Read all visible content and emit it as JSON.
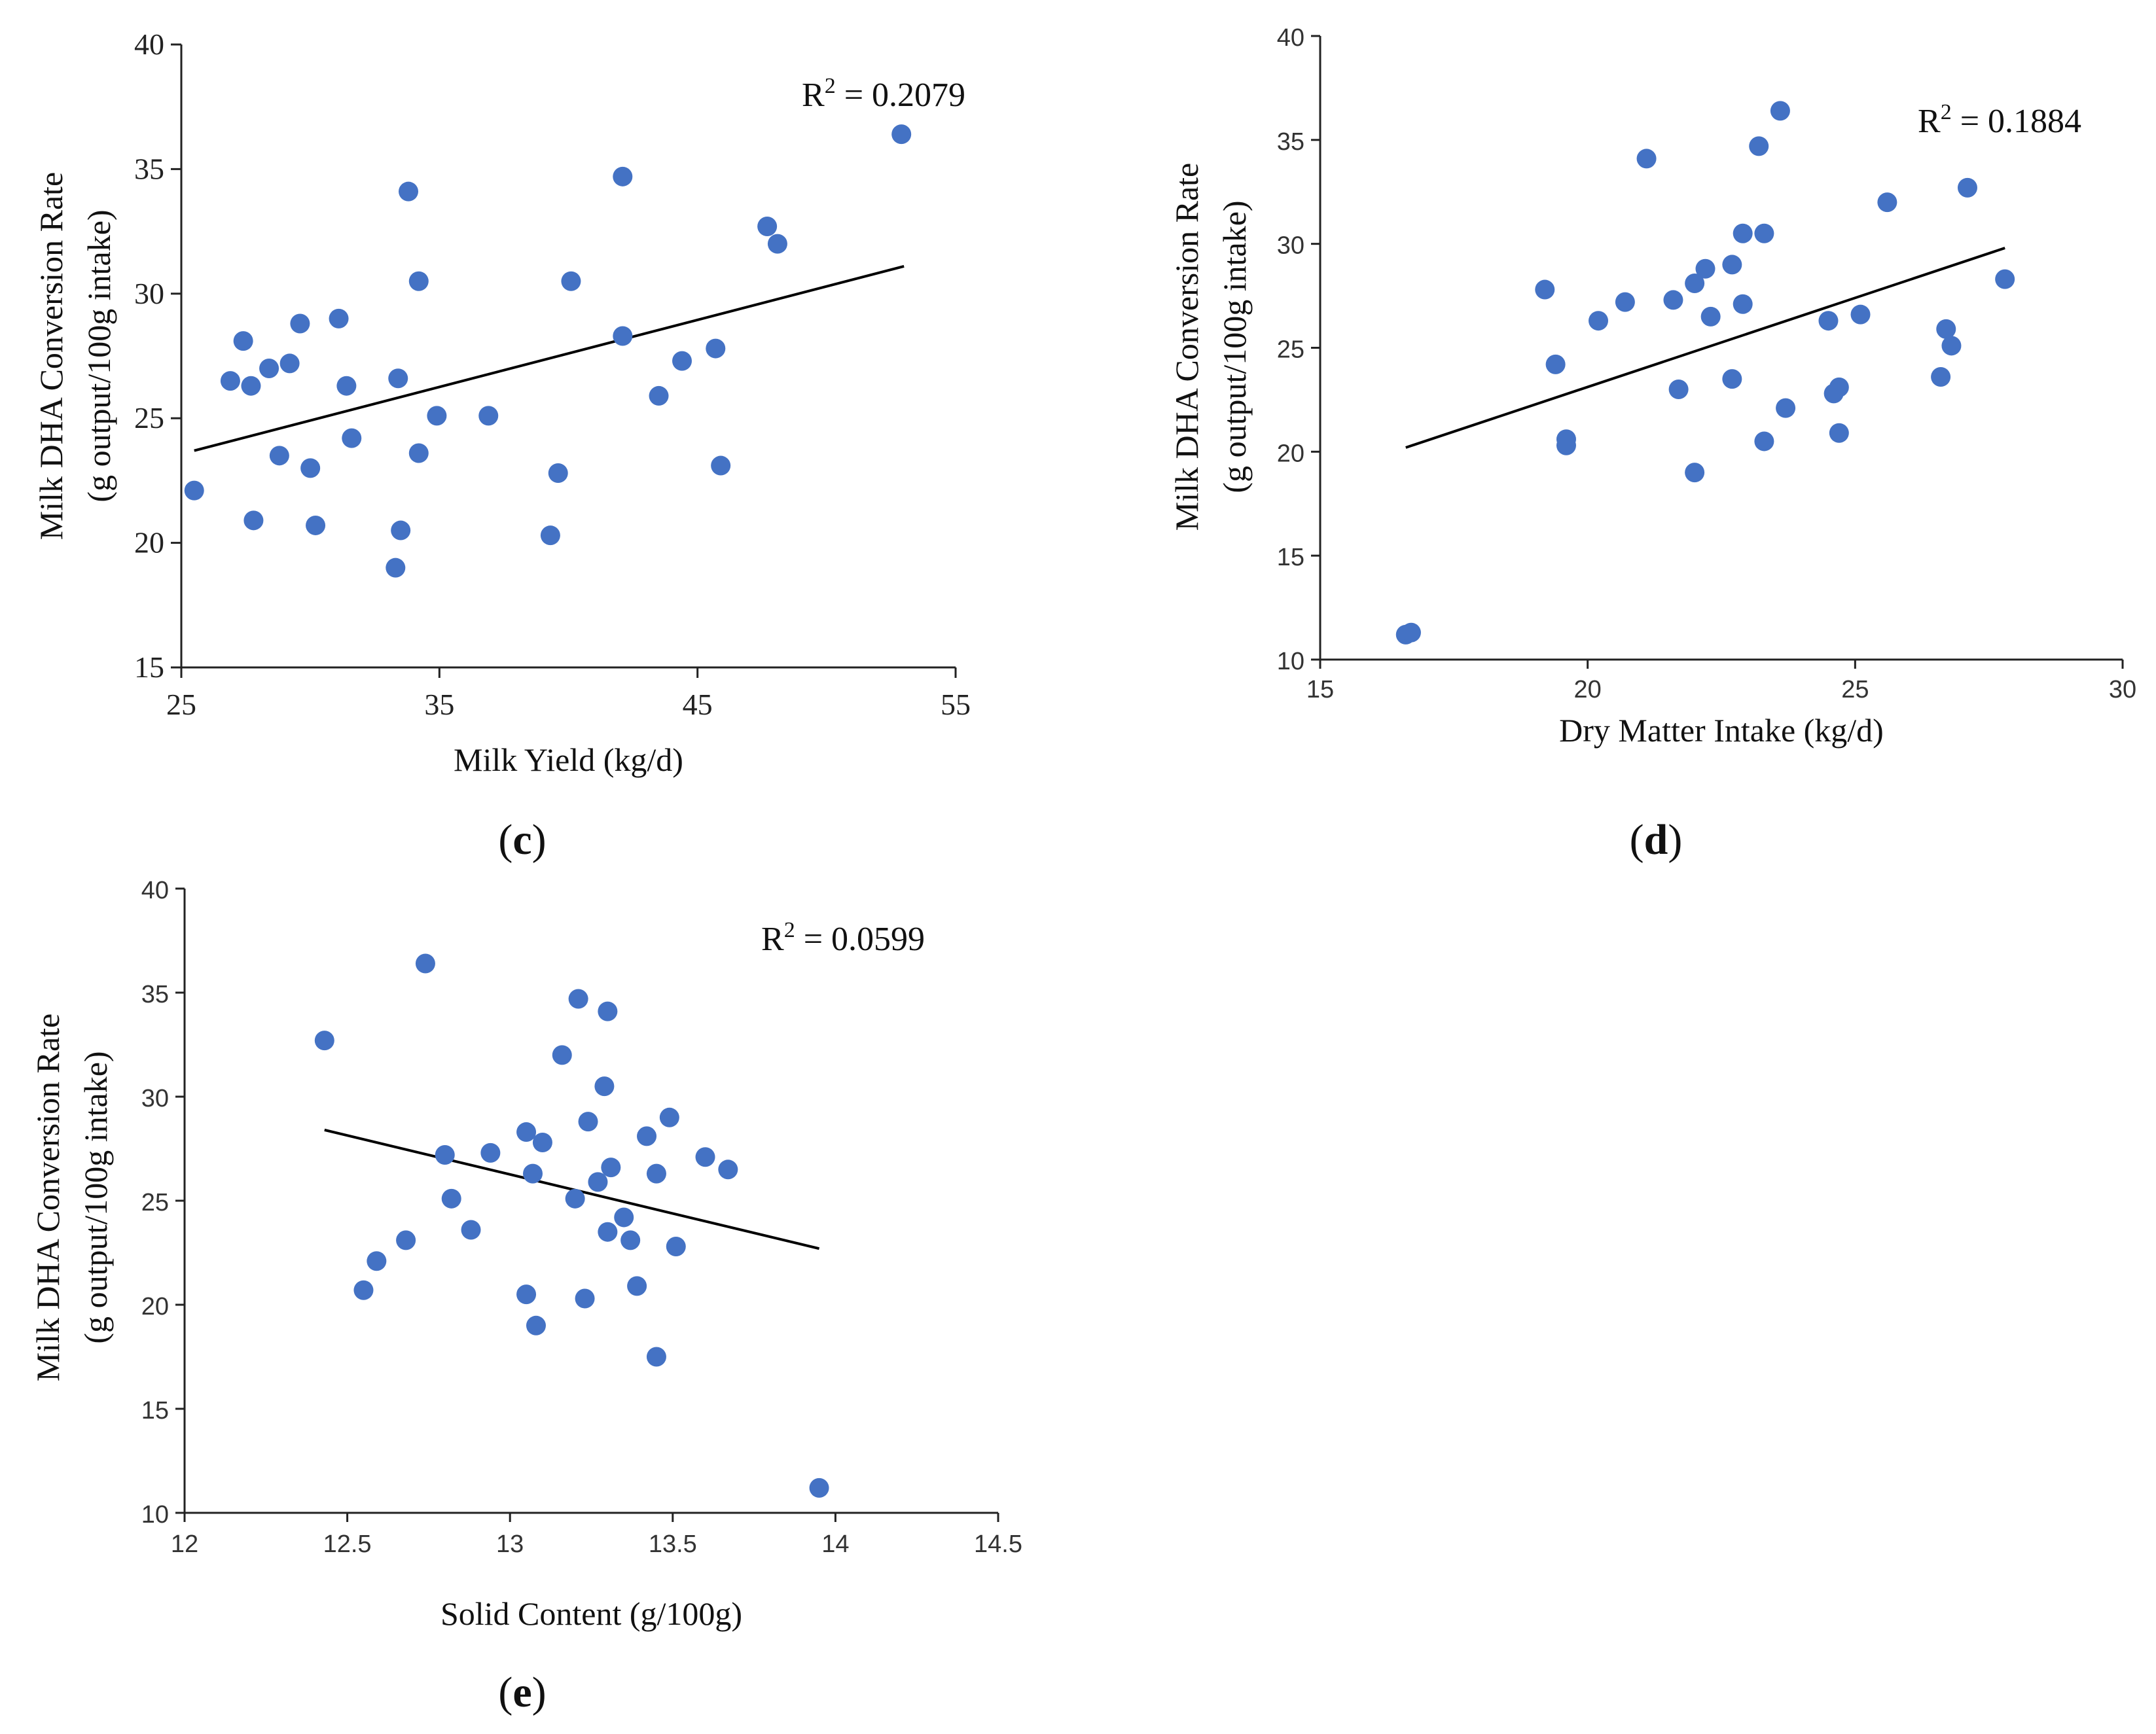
{
  "colors": {
    "point": "#4472C4",
    "line": "#000000",
    "axis": "#222222"
  },
  "chart_data": [
    {
      "type": "scatter",
      "panel": "c",
      "panel_label": "(c)",
      "xlabel": "Milk Yield (kg/d)",
      "ylabel_line1": "Milk DHA Conversion Rate",
      "ylabel_line2": "(g output/100g intake)",
      "xlim": [
        25,
        55
      ],
      "ylim": [
        15,
        40
      ],
      "xticks": [
        25,
        35,
        45,
        55
      ],
      "yticks": [
        15,
        20,
        25,
        30,
        35,
        40
      ],
      "r2_label": "R",
      "r2_sup": "2",
      "r2_value": " = 0.2079",
      "trend_line": {
        "x": [
          25.5,
          53
        ],
        "y": [
          23.7,
          31.1
        ]
      },
      "points": [
        [
          25.5,
          22.1
        ],
        [
          26.9,
          26.5
        ],
        [
          27.4,
          28.1
        ],
        [
          27.7,
          26.3
        ],
        [
          27.8,
          20.9
        ],
        [
          28.4,
          27.0
        ],
        [
          28.8,
          23.5
        ],
        [
          29.2,
          27.2
        ],
        [
          29.6,
          28.8
        ],
        [
          30.0,
          23.0
        ],
        [
          30.2,
          20.7
        ],
        [
          31.1,
          29.0
        ],
        [
          31.4,
          26.3
        ],
        [
          31.6,
          24.2
        ],
        [
          33.3,
          19.0
        ],
        [
          33.4,
          26.6
        ],
        [
          33.5,
          20.5
        ],
        [
          33.8,
          34.1
        ],
        [
          34.2,
          30.5
        ],
        [
          34.2,
          23.6
        ],
        [
          34.9,
          25.1
        ],
        [
          36.9,
          25.1
        ],
        [
          39.3,
          20.3
        ],
        [
          39.6,
          22.8
        ],
        [
          40.1,
          30.5
        ],
        [
          42.1,
          34.7
        ],
        [
          42.1,
          28.3
        ],
        [
          43.5,
          25.9
        ],
        [
          44.4,
          27.3
        ],
        [
          45.7,
          27.8
        ],
        [
          45.9,
          23.1
        ],
        [
          47.7,
          32.7
        ],
        [
          48.1,
          32.0
        ],
        [
          52.9,
          36.4
        ]
      ]
    },
    {
      "type": "scatter",
      "panel": "d",
      "panel_label": "(d)",
      "xlabel": "Dry Matter Intake (kg/d)",
      "ylabel_line1": "Milk DHA Conversion Rate",
      "ylabel_line2": "(g output/100g intake)",
      "xlim": [
        15,
        30
      ],
      "ylim": [
        10,
        40
      ],
      "xticks": [
        15,
        20,
        25,
        30
      ],
      "yticks": [
        10,
        15,
        20,
        25,
        30,
        35,
        40
      ],
      "r2_label": "R",
      "r2_sup": "2",
      "r2_value": " = 0.1884",
      "trend_line": {
        "x": [
          16.6,
          27.8
        ],
        "y": [
          20.2,
          29.8
        ]
      },
      "points": [
        [
          16.6,
          11.2
        ],
        [
          16.7,
          11.3
        ],
        [
          19.2,
          27.8
        ],
        [
          19.4,
          24.2
        ],
        [
          19.6,
          20.6
        ],
        [
          19.6,
          20.3
        ],
        [
          20.2,
          26.3
        ],
        [
          20.7,
          27.2
        ],
        [
          21.1,
          34.1
        ],
        [
          21.6,
          27.3
        ],
        [
          21.7,
          23.0
        ],
        [
          22.0,
          28.1
        ],
        [
          22.0,
          19.0
        ],
        [
          22.2,
          28.8
        ],
        [
          22.3,
          26.5
        ],
        [
          22.7,
          29.0
        ],
        [
          22.7,
          23.5
        ],
        [
          22.9,
          30.5
        ],
        [
          22.9,
          27.1
        ],
        [
          23.2,
          34.7
        ],
        [
          23.3,
          20.5
        ],
        [
          23.3,
          30.5
        ],
        [
          23.6,
          36.4
        ],
        [
          23.7,
          22.1
        ],
        [
          24.5,
          26.3
        ],
        [
          24.6,
          22.8
        ],
        [
          24.7,
          23.1
        ],
        [
          24.7,
          20.9
        ],
        [
          25.1,
          26.6
        ],
        [
          25.6,
          32.0
        ],
        [
          26.6,
          23.6
        ],
        [
          26.7,
          25.9
        ],
        [
          26.8,
          25.1
        ],
        [
          27.1,
          32.7
        ],
        [
          27.8,
          28.3
        ]
      ]
    },
    {
      "type": "scatter",
      "panel": "e",
      "panel_label": "(e)",
      "xlabel": "Solid Content (g/100g)",
      "ylabel_line1": "Milk DHA Conversion Rate",
      "ylabel_line2": "(g output/100g intake)",
      "xlim": [
        12,
        14.5
      ],
      "ylim": [
        10,
        40
      ],
      "xticks": [
        12,
        12.5,
        13,
        13.5,
        14,
        14.5
      ],
      "yticks": [
        10,
        15,
        20,
        25,
        30,
        35,
        40
      ],
      "r2_label": "R",
      "r2_sup": "2",
      "r2_value": " = 0.0599",
      "trend_line": {
        "x": [
          12.43,
          13.95
        ],
        "y": [
          28.4,
          22.7
        ]
      },
      "points": [
        [
          12.43,
          32.7
        ],
        [
          12.55,
          20.7
        ],
        [
          12.59,
          22.1
        ],
        [
          12.68,
          23.1
        ],
        [
          12.74,
          36.4
        ],
        [
          12.8,
          27.2
        ],
        [
          12.82,
          25.1
        ],
        [
          12.88,
          23.6
        ],
        [
          12.94,
          27.3
        ],
        [
          13.05,
          28.3
        ],
        [
          13.05,
          20.5
        ],
        [
          13.07,
          26.3
        ],
        [
          13.08,
          19.0
        ],
        [
          13.1,
          27.8
        ],
        [
          13.16,
          32.0
        ],
        [
          13.2,
          25.1
        ],
        [
          13.21,
          34.7
        ],
        [
          13.23,
          20.3
        ],
        [
          13.24,
          28.8
        ],
        [
          13.27,
          25.9
        ],
        [
          13.29,
          30.5
        ],
        [
          13.3,
          23.5
        ],
        [
          13.3,
          34.1
        ],
        [
          13.31,
          26.6
        ],
        [
          13.35,
          24.2
        ],
        [
          13.37,
          23.1
        ],
        [
          13.39,
          20.9
        ],
        [
          13.42,
          28.1
        ],
        [
          13.45,
          26.3
        ],
        [
          13.45,
          17.5
        ],
        [
          13.49,
          29.0
        ],
        [
          13.51,
          22.8
        ],
        [
          13.6,
          27.1
        ],
        [
          13.67,
          26.5
        ],
        [
          13.95,
          11.2
        ]
      ]
    }
  ]
}
